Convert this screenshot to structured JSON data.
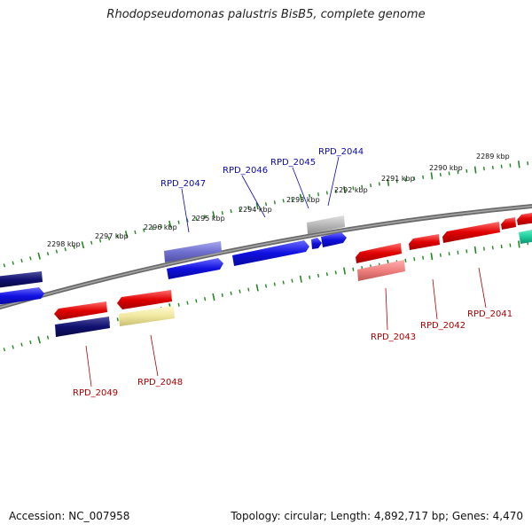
{
  "header": {
    "title": "Rhodopseudomonas palustris BisB5, complete genome"
  },
  "footer": {
    "accession": "Accession: NC_007958",
    "summary": "Topology: circular; Length: 4,892,717 bp; Genes: 4,470"
  },
  "colors": {
    "forward_gene": "#1010e0",
    "reverse_gene": "#e00000",
    "dark_navy": "#101070",
    "light_purple": "#7070d0",
    "light_red": "#f08080",
    "light_yellow": "#f0e8a0",
    "grey": "#b8b8b8",
    "teal": "#20d0a0",
    "backbone": "#808080",
    "tick": "#228822"
  },
  "ticks_outer": [
    {
      "label": "2298 kbp"
    },
    {
      "label": "2297 kbp"
    },
    {
      "label": "2296 kbp"
    },
    {
      "label": "2295 kbp"
    },
    {
      "label": "2294 kbp"
    },
    {
      "label": "2293 kbp"
    },
    {
      "label": "2292 kbp"
    },
    {
      "label": "2291 kbp"
    },
    {
      "label": "2290 kbp"
    },
    {
      "label": "2289 kbp"
    }
  ],
  "gene_labels_forward": [
    {
      "label": "RPD_2047"
    },
    {
      "label": "RPD_2046"
    },
    {
      "label": "RPD_2045"
    },
    {
      "label": "RPD_2044"
    }
  ],
  "gene_labels_reverse": [
    {
      "label": "RPD_2049"
    },
    {
      "label": "RPD_2048"
    },
    {
      "label": "RPD_2043"
    },
    {
      "label": "RPD_2042"
    },
    {
      "label": "RPD_2041"
    }
  ]
}
